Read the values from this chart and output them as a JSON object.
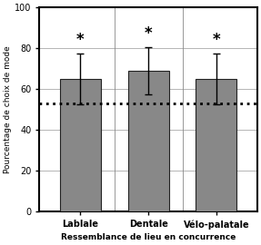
{
  "categories": [
    "Lablale",
    "Dentale",
    "Vélo-palatale"
  ],
  "values": [
    65.0,
    69.0,
    65.0
  ],
  "errors_upper": [
    12.5,
    11.5,
    12.5
  ],
  "errors_lower": [
    12.5,
    11.5,
    12.5
  ],
  "bar_color": "#888888",
  "bar_edgecolor": "#222222",
  "dashed_line_y": 53.0,
  "stars": [
    "*",
    "*",
    "*"
  ],
  "ylabel": "Pourcentage de choix de mode",
  "xlabel": "Ressemblance de lieu en concurrence",
  "ylim": [
    0,
    100
  ],
  "yticks": [
    0,
    20,
    40,
    60,
    80,
    100
  ],
  "background_color": "#ffffff",
  "bar_width": 0.6,
  "star_fontsize": 12,
  "label_fontsize": 6.5,
  "tick_fontsize": 7,
  "axis_linewidth": 1.5
}
